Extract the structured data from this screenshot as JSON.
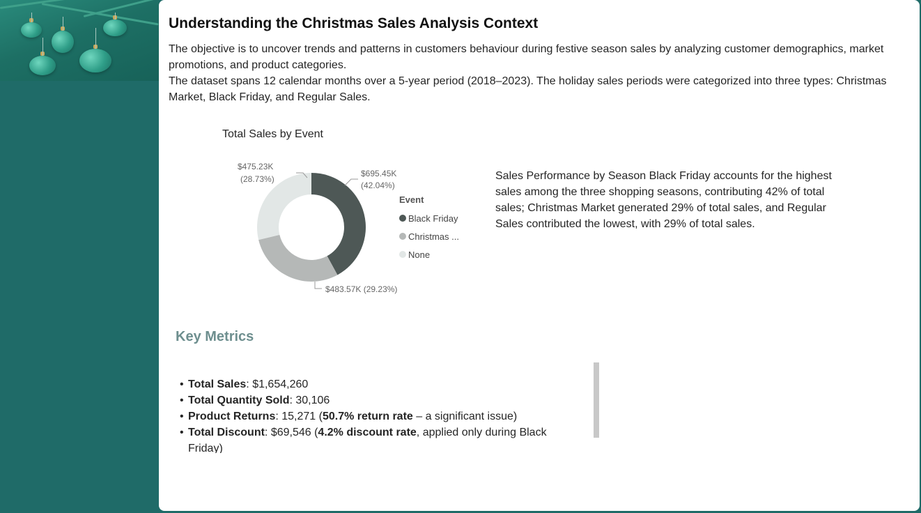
{
  "header": {
    "title": "Understanding the Christmas Sales Analysis Context",
    "paragraph1": "The objective is to uncover trends and patterns in customers behaviour during festive season sales by analyzing customer demographics, market promotions, and product categories.",
    "paragraph2": "The dataset spans 12 calendar months over a 5-year period (2018–2023). The holiday sales periods were categorized into three types: Christmas Market, Black Friday, and Regular Sales."
  },
  "chart_data": {
    "type": "pie",
    "title": "Total Sales by Event",
    "legend_title": "Event",
    "legend_position": "right",
    "categories": [
      "Black Friday",
      "Christmas ...",
      "None"
    ],
    "values": [
      695450,
      483570,
      475230
    ],
    "percentages": [
      42.04,
      29.23,
      28.73
    ],
    "labels": [
      "$695.45K",
      "$483.57K",
      "$475.23K"
    ],
    "pct_labels": [
      "(42.04%)",
      "(29.23%)",
      "(28.73%)"
    ],
    "colors": [
      "#4e5856",
      "#b5b8b7",
      "#e2e7e6"
    ]
  },
  "insight": {
    "text": "Sales Performance by Season Black Friday accounts for the highest sales among the three shopping seasons, contributing 42% of total sales; Christmas Market generated 29% of total sales, and Regular Sales contributed the lowest, with 29% of total sales."
  },
  "metrics": {
    "title": "Key Metrics",
    "bullet": "•",
    "items": [
      {
        "label": "Total Sales",
        "rest": ": $1,654,260"
      },
      {
        "label": "Total Quantity Sold",
        "rest": ": 30,106"
      },
      {
        "label": "Product Returns",
        "rest": ": 15,271 (",
        "bold2": "50.7% return rate",
        "rest2": " – a significant issue)"
      },
      {
        "label": "Total Discount",
        "rest": ": $69,546 (",
        "bold2": "4.2% discount rate",
        "rest2": ", applied only during Black Friday)"
      }
    ]
  }
}
